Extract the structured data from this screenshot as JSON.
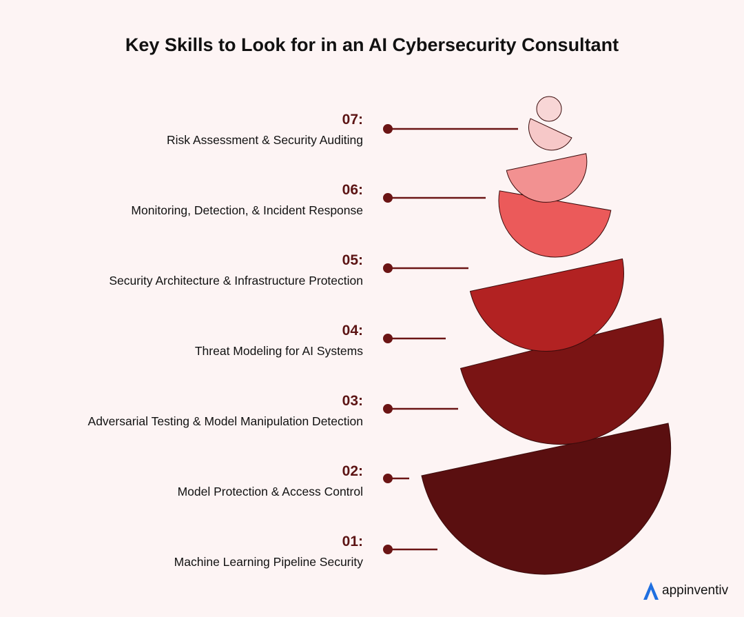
{
  "title": "Key Skills to Look for in an AI Cybersecurity Consultant",
  "items": [
    {
      "num": "07:",
      "label": "Risk Assessment & Security Auditing",
      "color": "#f6c8c8"
    },
    {
      "num": "06:",
      "label": "Monitoring, Detection, & Incident Response",
      "color": "#f29191"
    },
    {
      "num": "05:",
      "label": "Security Architecture & Infrastructure Protection",
      "color": "#eb5a5a"
    },
    {
      "num": "04:",
      "label": "Threat Modeling for AI Systems",
      "color": "#b22222"
    },
    {
      "num": "03:",
      "label": "Adversarial Testing & Model Manipulation Detection",
      "color": "#7a1414"
    },
    {
      "num": "02:",
      "label": "Model Protection & Access Control",
      "color": "#5a0f10"
    },
    {
      "num": "01:",
      "label": "Machine Learning Pipeline Security",
      "color": "#5a0f10"
    }
  ],
  "top_circle_color": "#f8d6d6",
  "connector_color": "#6b1414",
  "brand": {
    "name": "appinventiv",
    "logo_color": "#1f6fe0"
  }
}
